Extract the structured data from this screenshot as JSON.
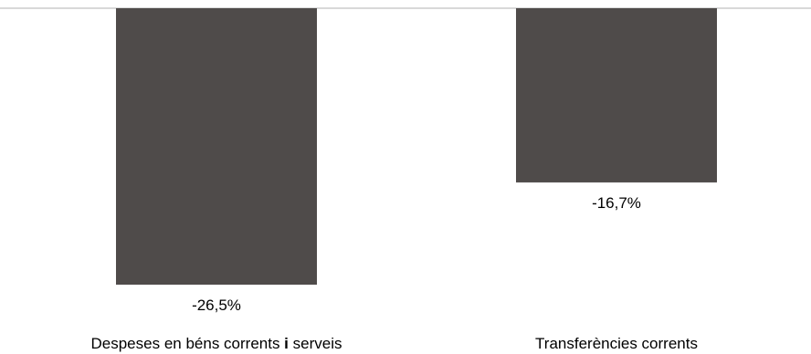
{
  "chart_data": {
    "type": "bar",
    "title": "",
    "xlabel": "",
    "ylabel": "",
    "categories": [
      "Despeses en béns corrents i serveis",
      "Transferències corrents"
    ],
    "values": [
      -26.5,
      -16.7
    ],
    "data_labels": [
      "-26,5%",
      "-16,7%"
    ],
    "ylim": [
      -26.5,
      0
    ],
    "grid": false,
    "legend": "none",
    "bar_color": "#4f4b4a",
    "axis_color": "#d9d9d9"
  }
}
